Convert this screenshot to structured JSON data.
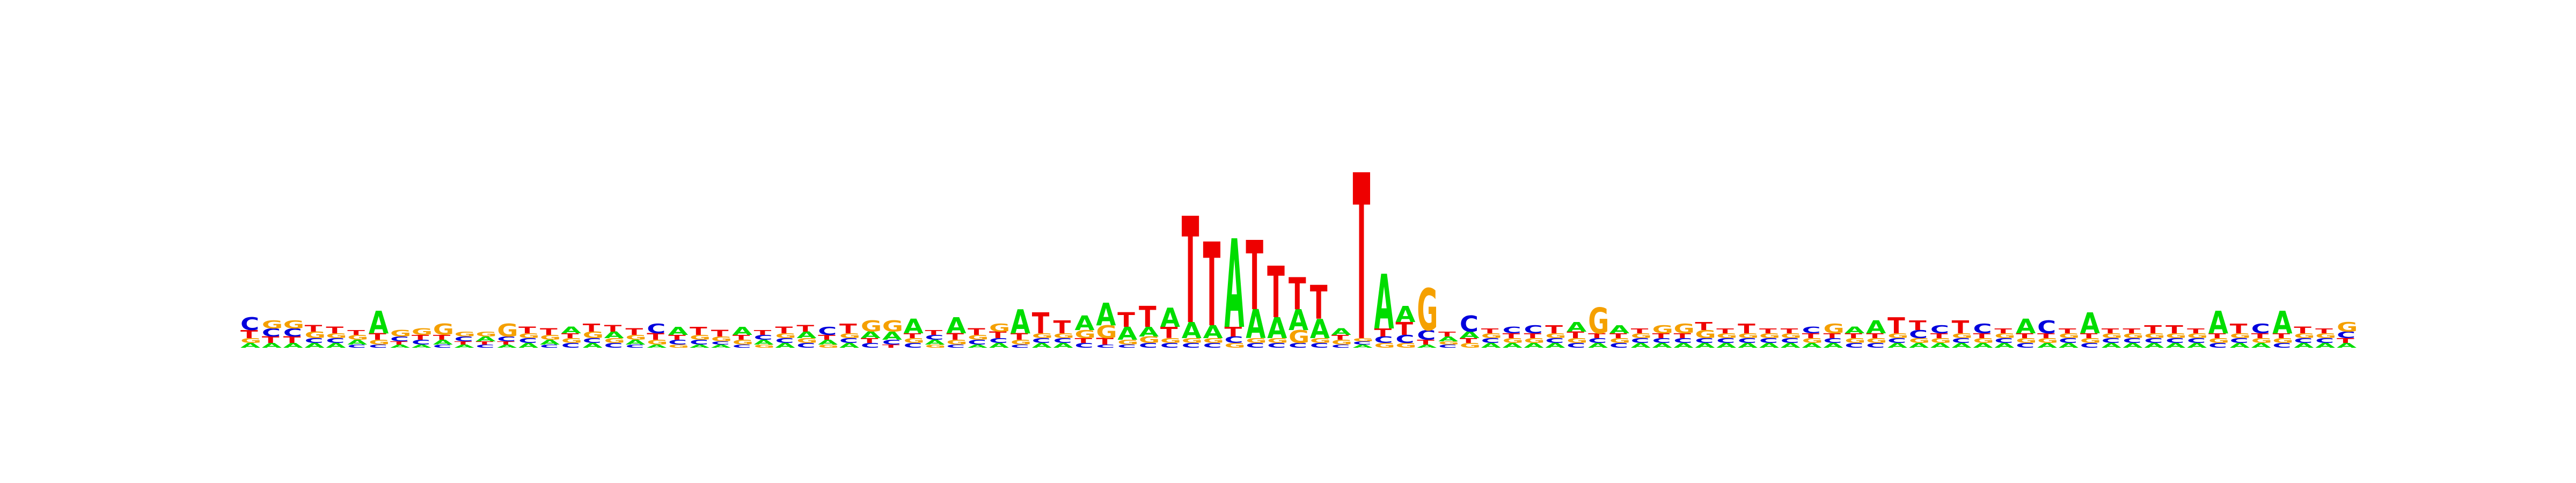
{
  "chart_data": {
    "type": "sequence-logo",
    "title": "",
    "xlabel": "",
    "ylabel": "",
    "grid": false,
    "legend": "none",
    "colors": {
      "A": "#00dd00",
      "C": "#0000dd",
      "G": "#f5a000",
      "T": "#ee0000"
    },
    "ylim": [
      0,
      2
    ],
    "positions": [
      {
        "A": 0.03,
        "C": 0.08,
        "G": 0.03,
        "T": 0.05
      },
      {
        "A": 0.03,
        "C": 0.05,
        "G": 0.05,
        "T": 0.04
      },
      {
        "A": 0.03,
        "C": 0.05,
        "G": 0.05,
        "T": 0.04
      },
      {
        "A": 0.03,
        "C": 0.03,
        "G": 0.04,
        "T": 0.04
      },
      {
        "A": 0.03,
        "C": 0.03,
        "G": 0.03,
        "T": 0.04
      },
      {
        "A": 0.03,
        "C": 0.02,
        "G": 0.03,
        "T": 0.03
      },
      {
        "A": 0.14,
        "C": 0.02,
        "G": 0.03,
        "T": 0.04
      },
      {
        "A": 0.02,
        "C": 0.03,
        "G": 0.04,
        "T": 0.02
      },
      {
        "A": 0.02,
        "C": 0.03,
        "G": 0.04,
        "T": 0.03
      },
      {
        "A": 0.03,
        "C": 0.02,
        "G": 0.07,
        "T": 0.03
      },
      {
        "A": 0.02,
        "C": 0.03,
        "G": 0.03,
        "T": 0.02
      },
      {
        "A": 0.03,
        "C": 0.02,
        "G": 0.03,
        "T": 0.02
      },
      {
        "A": 0.02,
        "C": 0.03,
        "G": 0.08,
        "T": 0.02
      },
      {
        "A": 0.03,
        "C": 0.03,
        "G": 0.03,
        "T": 0.04
      },
      {
        "A": 0.03,
        "C": 0.02,
        "G": 0.03,
        "T": 0.04
      },
      {
        "A": 0.04,
        "C": 0.03,
        "G": 0.03,
        "T": 0.03
      },
      {
        "A": 0.03,
        "C": 0.03,
        "G": 0.04,
        "T": 0.05
      },
      {
        "A": 0.04,
        "C": 0.03,
        "G": 0.03,
        "T": 0.04
      },
      {
        "A": 0.03,
        "C": 0.02,
        "G": 0.03,
        "T": 0.04
      },
      {
        "A": 0.02,
        "C": 0.06,
        "G": 0.03,
        "T": 0.04
      },
      {
        "A": 0.05,
        "C": 0.03,
        "G": 0.02,
        "T": 0.03
      },
      {
        "A": 0.02,
        "C": 0.03,
        "G": 0.03,
        "T": 0.05
      },
      {
        "A": 0.02,
        "C": 0.02,
        "G": 0.03,
        "T": 0.04
      },
      {
        "A": 0.05,
        "C": 0.02,
        "G": 0.03,
        "T": 0.03
      },
      {
        "A": 0.03,
        "C": 0.03,
        "G": 0.02,
        "T": 0.03
      },
      {
        "A": 0.03,
        "C": 0.03,
        "G": 0.03,
        "T": 0.04
      },
      {
        "A": 0.04,
        "C": 0.03,
        "G": 0.03,
        "T": 0.04
      },
      {
        "A": 0.03,
        "C": 0.05,
        "G": 0.02,
        "T": 0.03
      },
      {
        "A": 0.03,
        "C": 0.03,
        "G": 0.03,
        "T": 0.06
      },
      {
        "A": 0.04,
        "C": 0.03,
        "G": 0.07,
        "T": 0.03
      },
      {
        "A": 0.05,
        "C": 0.03,
        "G": 0.07,
        "T": 0.02
      },
      {
        "A": 0.09,
        "C": 0.03,
        "G": 0.03,
        "T": 0.03
      },
      {
        "A": 0.03,
        "C": 0.03,
        "G": 0.02,
        "T": 0.03
      },
      {
        "A": 0.1,
        "C": 0.02,
        "G": 0.03,
        "T": 0.04
      },
      {
        "A": 0.02,
        "C": 0.03,
        "G": 0.03,
        "T": 0.04
      },
      {
        "A": 0.03,
        "C": 0.03,
        "G": 0.05,
        "T": 0.04
      },
      {
        "A": 0.15,
        "C": 0.02,
        "G": 0.03,
        "T": 0.04
      },
      {
        "A": 0.03,
        "C": 0.03,
        "G": 0.03,
        "T": 0.13
      },
      {
        "A": 0.03,
        "C": 0.03,
        "G": 0.03,
        "T": 0.08
      },
      {
        "A": 0.09,
        "C": 0.03,
        "G": 0.05,
        "T": 0.03
      },
      {
        "A": 0.14,
        "C": 0.02,
        "G": 0.08,
        "T": 0.04
      },
      {
        "A": 0.08,
        "C": 0.02,
        "G": 0.03,
        "T": 0.09
      },
      {
        "A": 0.06,
        "C": 0.03,
        "G": 0.04,
        "T": 0.13
      },
      {
        "A": 0.12,
        "C": 0.03,
        "G": 0.03,
        "T": 0.07
      },
      {
        "A": 0.1,
        "C": 0.03,
        "G": 0.03,
        "T": 0.66
      },
      {
        "A": 0.08,
        "C": 0.03,
        "G": 0.03,
        "T": 0.52
      },
      {
        "A": 0.55,
        "C": 0.04,
        "G": 0.03,
        "T": 0.06
      },
      {
        "A": 0.18,
        "C": 0.03,
        "G": 0.03,
        "T": 0.43
      },
      {
        "A": 0.13,
        "C": 0.03,
        "G": 0.03,
        "T": 0.32
      },
      {
        "A": 0.13,
        "C": 0.03,
        "G": 0.08,
        "T": 0.2
      },
      {
        "A": 0.12,
        "C": 0.03,
        "G": 0.03,
        "T": 0.21
      },
      {
        "A": 0.04,
        "C": 0.02,
        "G": 0.03,
        "T": 0.03
      },
      {
        "A": 0.02,
        "C": 0.02,
        "G": 0.02,
        "T": 1.03
      },
      {
        "A": 0.34,
        "C": 0.04,
        "G": 0.03,
        "T": 0.05
      },
      {
        "A": 0.1,
        "C": 0.05,
        "G": 0.03,
        "T": 0.08
      },
      {
        "A": 0.02,
        "C": 0.06,
        "G": 0.26,
        "T": 0.03
      },
      {
        "A": 0.03,
        "C": 0.02,
        "G": 0.02,
        "T": 0.03
      },
      {
        "A": 0.04,
        "C": 0.1,
        "G": 0.03,
        "T": 0.03
      },
      {
        "A": 0.03,
        "C": 0.03,
        "G": 0.03,
        "T": 0.03
      },
      {
        "A": 0.03,
        "C": 0.04,
        "G": 0.03,
        "T": 0.03
      },
      {
        "A": 0.03,
        "C": 0.05,
        "G": 0.03,
        "T": 0.03
      },
      {
        "A": 0.03,
        "C": 0.03,
        "G": 0.03,
        "T": 0.05
      },
      {
        "A": 0.06,
        "C": 0.03,
        "G": 0.03,
        "T": 0.04
      },
      {
        "A": 0.03,
        "C": 0.03,
        "G": 0.16,
        "T": 0.03
      },
      {
        "A": 0.05,
        "C": 0.03,
        "G": 0.03,
        "T": 0.03
      },
      {
        "A": 0.03,
        "C": 0.03,
        "G": 0.03,
        "T": 0.03
      },
      {
        "A": 0.03,
        "C": 0.03,
        "G": 0.05,
        "T": 0.03
      },
      {
        "A": 0.03,
        "C": 0.03,
        "G": 0.06,
        "T": 0.03
      },
      {
        "A": 0.03,
        "C": 0.03,
        "G": 0.05,
        "T": 0.05
      },
      {
        "A": 0.03,
        "C": 0.03,
        "G": 0.03,
        "T": 0.03
      },
      {
        "A": 0.03,
        "C": 0.03,
        "G": 0.03,
        "T": 0.06
      },
      {
        "A": 0.03,
        "C": 0.03,
        "G": 0.03,
        "T": 0.03
      },
      {
        "A": 0.03,
        "C": 0.03,
        "G": 0.03,
        "T": 0.03
      },
      {
        "A": 0.03,
        "C": 0.04,
        "G": 0.03,
        "T": 0.03
      },
      {
        "A": 0.03,
        "C": 0.03,
        "G": 0.06,
        "T": 0.03
      },
      {
        "A": 0.04,
        "C": 0.03,
        "G": 0.03,
        "T": 0.03
      },
      {
        "A": 0.08,
        "C": 0.03,
        "G": 0.03,
        "T": 0.03
      },
      {
        "A": 0.03,
        "C": 0.03,
        "G": 0.03,
        "T": 0.1
      },
      {
        "A": 0.03,
        "C": 0.05,
        "G": 0.03,
        "T": 0.06
      },
      {
        "A": 0.03,
        "C": 0.05,
        "G": 0.03,
        "T": 0.03
      },
      {
        "A": 0.03,
        "C": 0.03,
        "G": 0.03,
        "T": 0.08
      },
      {
        "A": 0.03,
        "C": 0.06,
        "G": 0.03,
        "T": 0.03
      },
      {
        "A": 0.03,
        "C": 0.03,
        "G": 0.03,
        "T": 0.03
      },
      {
        "A": 0.09,
        "C": 0.03,
        "G": 0.03,
        "T": 0.03
      },
      {
        "A": 0.03,
        "C": 0.08,
        "G": 0.03,
        "T": 0.03
      },
      {
        "A": 0.03,
        "C": 0.03,
        "G": 0.03,
        "T": 0.03
      },
      {
        "A": 0.13,
        "C": 0.03,
        "G": 0.03,
        "T": 0.03
      },
      {
        "A": 0.03,
        "C": 0.03,
        "G": 0.03,
        "T": 0.03
      },
      {
        "A": 0.03,
        "C": 0.03,
        "G": 0.03,
        "T": 0.03
      },
      {
        "A": 0.03,
        "C": 0.03,
        "G": 0.03,
        "T": 0.05
      },
      {
        "A": 0.03,
        "C": 0.03,
        "G": 0.03,
        "T": 0.05
      },
      {
        "A": 0.03,
        "C": 0.03,
        "G": 0.03,
        "T": 0.03
      },
      {
        "A": 0.14,
        "C": 0.03,
        "G": 0.03,
        "T": 0.03
      },
      {
        "A": 0.03,
        "C": 0.03,
        "G": 0.03,
        "T": 0.06
      },
      {
        "A": 0.03,
        "C": 0.06,
        "G": 0.03,
        "T": 0.03
      },
      {
        "A": 0.14,
        "C": 0.03,
        "G": 0.03,
        "T": 0.03
      },
      {
        "A": 0.03,
        "C": 0.03,
        "G": 0.03,
        "T": 0.04
      },
      {
        "A": 0.03,
        "C": 0.03,
        "G": 0.03,
        "T": 0.03
      },
      {
        "A": 0.03,
        "C": 0.04,
        "G": 0.06,
        "T": 0.03
      }
    ]
  }
}
